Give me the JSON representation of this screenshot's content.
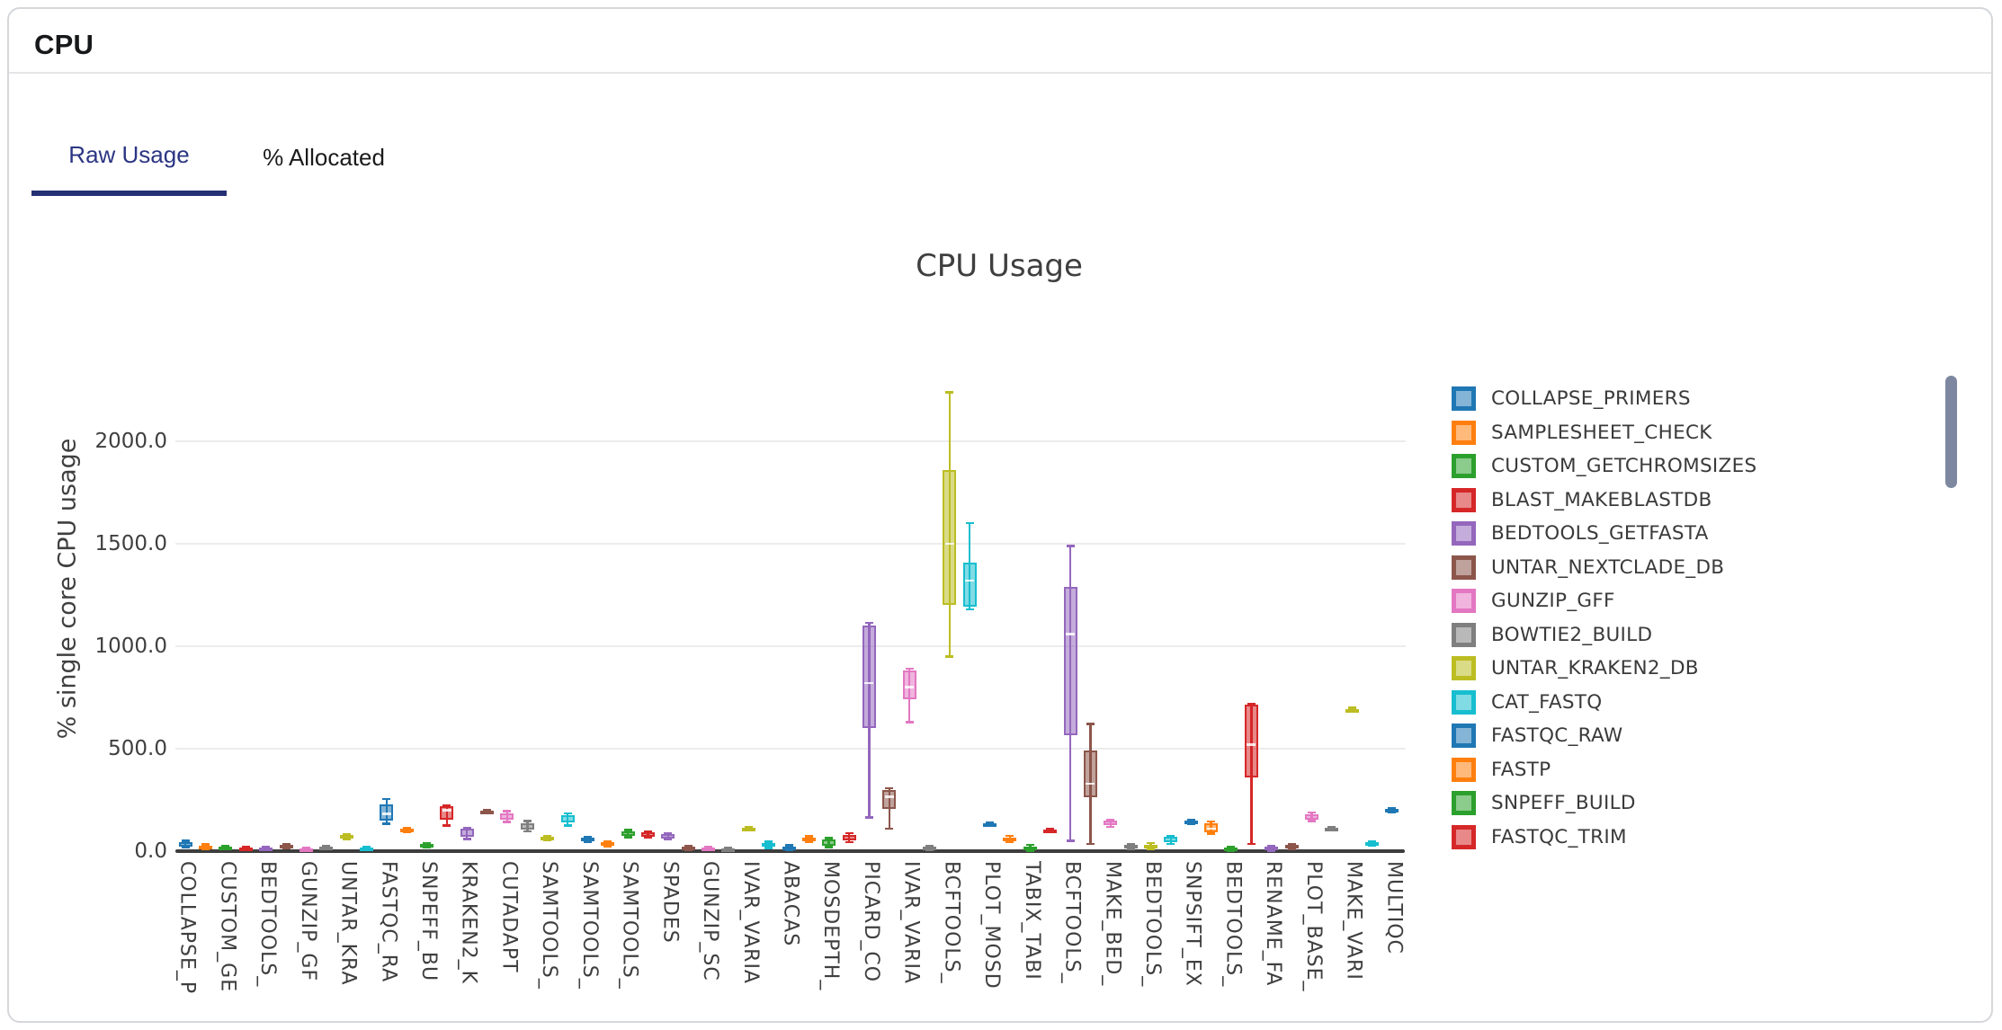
{
  "header": {
    "title": "CPU"
  },
  "tabs": [
    {
      "label": "Raw Usage",
      "active": true
    },
    {
      "label": "% Allocated",
      "active": false
    }
  ],
  "chart_data": {
    "type": "box",
    "title": "CPU Usage",
    "ylabel": "% single core CPU usage",
    "grid": "horizontal",
    "legend_position": "right",
    "ylim": [
      0,
      2300
    ],
    "yticks": [
      {
        "label": "0.0",
        "value": 0
      },
      {
        "label": "500.0",
        "value": 500
      },
      {
        "label": "1000.0",
        "value": 1000
      },
      {
        "label": "1500.0",
        "value": 1500
      },
      {
        "label": "2000.0",
        "value": 2000
      }
    ],
    "xtick_labels": [
      "COLLAPSE_P",
      "CUSTOM_GE",
      "BEDTOOLS_",
      "GUNZIP_GF",
      "UNTAR_KRA",
      "FASTQC_RA",
      "SNPEFF_BU",
      "KRAKEN2_K",
      "CUTADAPT",
      "SAMTOOLS_",
      "SAMTOOLS_",
      "SAMTOOLS_",
      "SPADES",
      "GUNZIP_SC",
      "IVAR_VARIA",
      "ABACAS",
      "MOSDEPTH_",
      "PICARD_CO",
      "IVAR_VARIA",
      "BCFTOOLS_",
      "PLOT_MOSD",
      "TABIX_TABI",
      "BCFTOOLS_",
      "MAKE_BED_",
      "BEDTOOLS_",
      "SNPSIFT_EX",
      "BEDTOOLS_",
      "RENAME_FA",
      "PLOT_BASE_",
      "MAKE_VARI",
      "MULTIQC"
    ],
    "palette": {
      "blue": "#1f77b4",
      "orange": "#ff7f0e",
      "green": "#2ca02c",
      "red": "#d62728",
      "purple": "#9467bd",
      "brown": "#8c564b",
      "pink": "#e377c2",
      "gray": "#7f7f7f",
      "olive": "#bcbd22",
      "cyan": "#17becf"
    },
    "box_stats_order": [
      "min",
      "q1",
      "median",
      "q3",
      "max"
    ],
    "series": [
      {
        "name": "COLLAPSE_PRIMERS",
        "color": "blue",
        "values": [
          18,
          24,
          32,
          42,
          50
        ]
      },
      {
        "name": "SAMPLESHEET_CHECK",
        "color": "orange",
        "values": [
          12,
          16,
          22,
          28,
          32
        ]
      },
      {
        "name": "CUSTOM_GETCHROMSIZES",
        "color": "green",
        "values": [
          10,
          13,
          18,
          24,
          27
        ]
      },
      {
        "name": "BLAST_MAKEBLASTDB",
        "color": "red",
        "values": [
          4,
          7,
          11,
          16,
          19
        ]
      },
      {
        "name": "BEDTOOLS_GETFASTA",
        "color": "purple",
        "values": [
          4,
          7,
          11,
          16,
          19
        ]
      },
      {
        "name": "UNTAR_NEXTCLADE_DB",
        "color": "brown",
        "values": [
          16,
          20,
          25,
          31,
          35
        ]
      },
      {
        "name": "GUNZIP_GFF",
        "color": "pink",
        "values": [
          3,
          6,
          9,
          14,
          17
        ]
      },
      {
        "name": "BOWTIE2_BUILD",
        "color": "gray",
        "values": [
          9,
          13,
          17,
          22,
          26
        ]
      },
      {
        "name": "UNTAR_KRAKEN2_DB",
        "color": "olive",
        "values": [
          58,
          63,
          70,
          77,
          82
        ]
      },
      {
        "name": "CAT_FASTQ",
        "color": "cyan",
        "values": [
          7,
          10,
          14,
          19,
          23
        ]
      },
      {
        "name": "FASTQC_RAW",
        "color": "blue",
        "values": [
          133,
          150,
          182,
          228,
          254
        ]
      },
      {
        "name": "FASTP",
        "color": "orange",
        "values": [
          93,
          97,
          103,
          110,
          114
        ]
      },
      {
        "name": "SNPEFF_BUILD",
        "color": "green",
        "values": [
          19,
          23,
          28,
          34,
          38
        ]
      },
      {
        "name": "FASTQC_TRIM",
        "color": "red",
        "values": [
          124,
          155,
          200,
          219,
          222
        ]
      },
      {
        "name": "KRAKEN2_K",
        "color": "purple",
        "values": [
          60,
          70,
          88,
          108,
          115
        ]
      },
      {
        "name": "",
        "color": "brown",
        "values": [
          188,
          191,
          195,
          199,
          202
        ]
      },
      {
        "name": "CUTADAPT",
        "color": "pink",
        "values": [
          143,
          152,
          165,
          185,
          196
        ]
      },
      {
        "name": "",
        "color": "gray",
        "values": [
          97,
          107,
          122,
          138,
          147
        ]
      },
      {
        "name": "SAMTOOLS_",
        "color": "olive",
        "values": [
          52,
          58,
          64,
          70,
          75
        ]
      },
      {
        "name": "",
        "color": "cyan",
        "values": [
          126,
          140,
          158,
          176,
          185
        ]
      },
      {
        "name": "SAMTOOLS_",
        "color": "blue",
        "values": [
          46,
          52,
          58,
          66,
          71
        ]
      },
      {
        "name": "",
        "color": "orange",
        "values": [
          21,
          27,
          34,
          42,
          48
        ]
      },
      {
        "name": "SAMTOOLS_",
        "color": "green",
        "values": [
          67,
          74,
          84,
          97,
          104
        ]
      },
      {
        "name": "",
        "color": "red",
        "values": [
          67,
          72,
          80,
          91,
          97
        ]
      },
      {
        "name": "SPADES",
        "color": "purple",
        "values": [
          57,
          63,
          72,
          82,
          88
        ]
      },
      {
        "name": "",
        "color": "brown",
        "values": [
          5,
          9,
          14,
          21,
          26
        ]
      },
      {
        "name": "GUNZIP_SC",
        "color": "pink",
        "values": [
          5,
          8,
          12,
          18,
          22
        ]
      },
      {
        "name": "",
        "color": "gray",
        "values": [
          2,
          5,
          8,
          13,
          17
        ]
      },
      {
        "name": "IVAR_VARIA",
        "color": "olive",
        "values": [
          104,
          107,
          110,
          114,
          117
        ]
      },
      {
        "name": "",
        "color": "cyan",
        "values": [
          16,
          22,
          30,
          40,
          47
        ]
      },
      {
        "name": "ABACAS",
        "color": "blue",
        "values": [
          4,
          9,
          15,
          23,
          28
        ]
      },
      {
        "name": "",
        "color": "orange",
        "values": [
          45,
          52,
          58,
          66,
          73
        ]
      },
      {
        "name": "MOSDEPTH_",
        "color": "green",
        "values": [
          20,
          28,
          40,
          55,
          64
        ]
      },
      {
        "name": "",
        "color": "red",
        "values": [
          44,
          52,
          64,
          78,
          88
        ]
      },
      {
        "name": "PICARD_CO",
        "color": "purple",
        "values": [
          165,
          600,
          820,
          1100,
          1115
        ]
      },
      {
        "name": "",
        "color": "brown",
        "values": [
          110,
          205,
          265,
          300,
          307
        ]
      },
      {
        "name": "IVAR_VARIA",
        "color": "pink",
        "values": [
          630,
          740,
          800,
          880,
          890
        ]
      },
      {
        "name": "",
        "color": "gray",
        "values": [
          4,
          8,
          13,
          20,
          26
        ]
      },
      {
        "name": "BCFTOOLS_",
        "color": "olive",
        "values": [
          950,
          1200,
          1500,
          1860,
          2240
        ]
      },
      {
        "name": "",
        "color": "cyan",
        "values": [
          1180,
          1195,
          1320,
          1410,
          1600
        ]
      },
      {
        "name": "PLOT_MOSD",
        "color": "blue",
        "values": [
          125,
          128,
          132,
          137,
          140
        ]
      },
      {
        "name": "",
        "color": "orange",
        "values": [
          44,
          50,
          57,
          67,
          75
        ]
      },
      {
        "name": "TABIX_TABI",
        "color": "green",
        "values": [
          2,
          6,
          12,
          22,
          30
        ]
      },
      {
        "name": "",
        "color": "red",
        "values": [
          95,
          98,
          102,
          106,
          110
        ]
      },
      {
        "name": "BCFTOOLS_",
        "color": "purple",
        "values": [
          50,
          565,
          1060,
          1290,
          1490
        ]
      },
      {
        "name": "",
        "color": "brown",
        "values": [
          35,
          265,
          330,
          490,
          620
        ]
      },
      {
        "name": "MAKE_BED_",
        "color": "pink",
        "values": [
          118,
          126,
          135,
          147,
          153
        ]
      },
      {
        "name": "",
        "color": "gray",
        "values": [
          8,
          14,
          20,
          30,
          36
        ]
      },
      {
        "name": "BEDTOOLS_",
        "color": "olive",
        "values": [
          8,
          14,
          22,
          32,
          39
        ]
      },
      {
        "name": "",
        "color": "cyan",
        "values": [
          36,
          43,
          55,
          68,
          75
        ]
      },
      {
        "name": "SNPSIFT_EX",
        "color": "blue",
        "values": [
          133,
          136,
          140,
          147,
          152
        ]
      },
      {
        "name": "",
        "color": "orange",
        "values": [
          85,
          94,
          110,
          135,
          145
        ]
      },
      {
        "name": "BEDTOOLS_",
        "color": "green",
        "values": [
          1,
          5,
          10,
          17,
          22
        ]
      },
      {
        "name": "",
        "color": "red",
        "values": [
          35,
          360,
          520,
          715,
          720
        ]
      },
      {
        "name": "RENAME_FA",
        "color": "purple",
        "values": [
          2,
          6,
          12,
          20,
          25
        ]
      },
      {
        "name": "",
        "color": "brown",
        "values": [
          10,
          15,
          21,
          29,
          35
        ]
      },
      {
        "name": "PLOT_BASE_",
        "color": "pink",
        "values": [
          148,
          155,
          165,
          178,
          188
        ]
      },
      {
        "name": "",
        "color": "gray",
        "values": [
          100,
          105,
          110,
          115,
          119
        ]
      },
      {
        "name": "MAKE_VARI",
        "color": "olive",
        "values": [
          682,
          686,
          690,
          695,
          700
        ]
      },
      {
        "name": "",
        "color": "cyan",
        "values": [
          29,
          33,
          38,
          43,
          46
        ]
      },
      {
        "name": "MULTIQC",
        "color": "blue",
        "values": [
          191,
          195,
          200,
          205,
          210
        ]
      }
    ],
    "legend": [
      {
        "label": "COLLAPSE_PRIMERS",
        "color": "blue"
      },
      {
        "label": "SAMPLESHEET_CHECK",
        "color": "orange"
      },
      {
        "label": "CUSTOM_GETCHROMSIZES",
        "color": "green"
      },
      {
        "label": "BLAST_MAKEBLASTDB",
        "color": "red"
      },
      {
        "label": "BEDTOOLS_GETFASTA",
        "color": "purple"
      },
      {
        "label": "UNTAR_NEXTCLADE_DB",
        "color": "brown"
      },
      {
        "label": "GUNZIP_GFF",
        "color": "pink"
      },
      {
        "label": "BOWTIE2_BUILD",
        "color": "gray"
      },
      {
        "label": "UNTAR_KRAKEN2_DB",
        "color": "olive"
      },
      {
        "label": "CAT_FASTQ",
        "color": "cyan"
      },
      {
        "label": "FASTQC_RAW",
        "color": "blue"
      },
      {
        "label": "FASTP",
        "color": "orange"
      },
      {
        "label": "SNPEFF_BUILD",
        "color": "green"
      },
      {
        "label": "FASTQC_TRIM",
        "color": "red"
      }
    ]
  }
}
